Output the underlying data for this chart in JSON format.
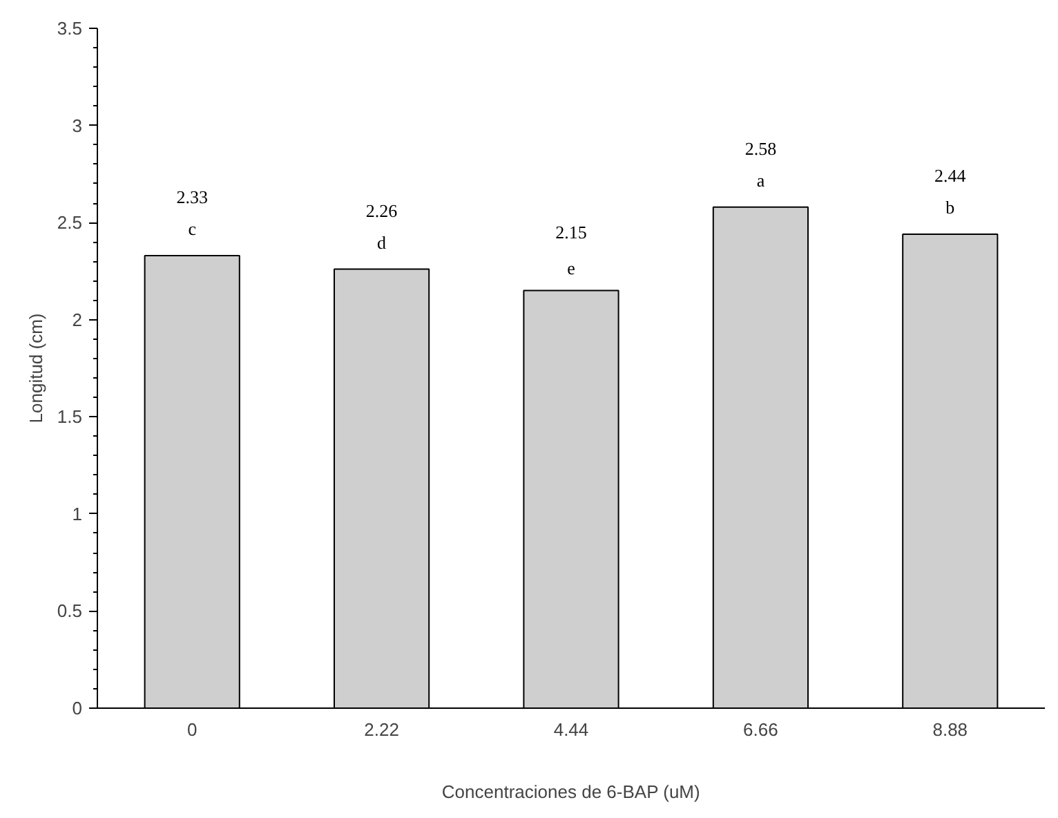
{
  "chart_data": {
    "type": "bar",
    "xlabel": "Concentraciones de 6-BAP (uM)",
    "ylabel": "Longitud (cm)",
    "categories": [
      "0",
      "2.22",
      "4.44",
      "6.66",
      "8.88"
    ],
    "values": [
      2.33,
      2.26,
      2.15,
      2.58,
      2.44
    ],
    "color": "#cfcfcf",
    "ylim": [
      0,
      3.5
    ],
    "yticks": [
      0,
      0.5,
      1,
      1.5,
      2,
      2.5,
      3,
      3.5
    ],
    "grid": false,
    "data_labels": true,
    "annotations": [
      {
        "text": "c",
        "x": "0",
        "y": 2.33
      },
      {
        "text": "d",
        "x": "2.22",
        "y": 2.26
      },
      {
        "text": "e",
        "x": "4.44",
        "y": 2.15
      },
      {
        "text": "a",
        "x": "6.66",
        "y": 2.58
      },
      {
        "text": "b",
        "x": "8.88",
        "y": 2.44
      }
    ]
  }
}
